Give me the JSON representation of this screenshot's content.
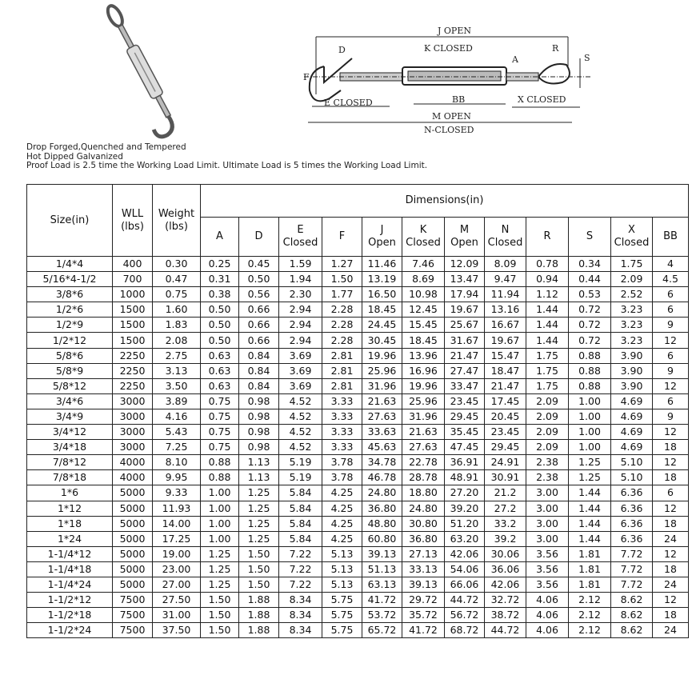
{
  "diagram": {
    "labels": {
      "j_open": "J OPEN",
      "k_closed": "K CLOSED",
      "e_closed": "E CLOSED",
      "bb": "BB",
      "x_closed": "X CLOSED",
      "m_open": "M OPEN",
      "n_closed": "N-CLOSED",
      "d": "D",
      "f": "F",
      "a": "A",
      "r": "R",
      "s": "S"
    }
  },
  "notes": [
    "Drop Forged,Quenched and Tempered",
    "Hot Dipped Galvanized",
    "Proof Load is 2.5 time the Working Load Limit. Ultimate Load is 5 times the Working Load Limit."
  ],
  "table": {
    "headers": {
      "size": "Size(in)",
      "wll": "WLL (lbs)",
      "weight": "Weight (lbs)",
      "dimensions": "Dimensions(in)"
    },
    "dim_columns": [
      {
        "top": "",
        "bottom": "A"
      },
      {
        "top": "",
        "bottom": "D"
      },
      {
        "top": "E",
        "bottom": "Closed"
      },
      {
        "top": "",
        "bottom": "F"
      },
      {
        "top": "J",
        "bottom": "Open"
      },
      {
        "top": "K",
        "bottom": "Closed"
      },
      {
        "top": "M",
        "bottom": "Open"
      },
      {
        "top": "N",
        "bottom": "Closed"
      },
      {
        "top": "",
        "bottom": "R"
      },
      {
        "top": "",
        "bottom": "S"
      },
      {
        "top": "X",
        "bottom": "Closed"
      },
      {
        "top": "",
        "bottom": "BB"
      }
    ],
    "rows": [
      [
        "1/4*4",
        "400",
        "0.30",
        "0.25",
        "0.45",
        "1.59",
        "1.27",
        "11.46",
        "7.46",
        "12.09",
        "8.09",
        "0.78",
        "0.34",
        "1.75",
        "4"
      ],
      [
        "5/16*4-1/2",
        "700",
        "0.47",
        "0.31",
        "0.50",
        "1.94",
        "1.50",
        "13.19",
        "8.69",
        "13.47",
        "9.47",
        "0.94",
        "0.44",
        "2.09",
        "4.5"
      ],
      [
        "3/8*6",
        "1000",
        "0.75",
        "0.38",
        "0.56",
        "2.30",
        "1.77",
        "16.50",
        "10.98",
        "17.94",
        "11.94",
        "1.12",
        "0.53",
        "2.52",
        "6"
      ],
      [
        "1/2*6",
        "1500",
        "1.60",
        "0.50",
        "0.66",
        "2.94",
        "2.28",
        "18.45",
        "12.45",
        "19.67",
        "13.16",
        "1.44",
        "0.72",
        "3.23",
        "6"
      ],
      [
        "1/2*9",
        "1500",
        "1.83",
        "0.50",
        "0.66",
        "2.94",
        "2.28",
        "24.45",
        "15.45",
        "25.67",
        "16.67",
        "1.44",
        "0.72",
        "3.23",
        "9"
      ],
      [
        "1/2*12",
        "1500",
        "2.08",
        "0.50",
        "0.66",
        "2.94",
        "2.28",
        "30.45",
        "18.45",
        "31.67",
        "19.67",
        "1.44",
        "0.72",
        "3.23",
        "12"
      ],
      [
        "5/8*6",
        "2250",
        "2.75",
        "0.63",
        "0.84",
        "3.69",
        "2.81",
        "19.96",
        "13.96",
        "21.47",
        "15.47",
        "1.75",
        "0.88",
        "3.90",
        "6"
      ],
      [
        "5/8*9",
        "2250",
        "3.13",
        "0.63",
        "0.84",
        "3.69",
        "2.81",
        "25.96",
        "16.96",
        "27.47",
        "18.47",
        "1.75",
        "0.88",
        "3.90",
        "9"
      ],
      [
        "5/8*12",
        "2250",
        "3.50",
        "0.63",
        "0.84",
        "3.69",
        "2.81",
        "31.96",
        "19.96",
        "33.47",
        "21.47",
        "1.75",
        "0.88",
        "3.90",
        "12"
      ],
      [
        "3/4*6",
        "3000",
        "3.89",
        "0.75",
        "0.98",
        "4.52",
        "3.33",
        "21.63",
        "25.96",
        "23.45",
        "17.45",
        "2.09",
        "1.00",
        "4.69",
        "6"
      ],
      [
        "3/4*9",
        "3000",
        "4.16",
        "0.75",
        "0.98",
        "4.52",
        "3.33",
        "27.63",
        "31.96",
        "29.45",
        "20.45",
        "2.09",
        "1.00",
        "4.69",
        "9"
      ],
      [
        "3/4*12",
        "3000",
        "5.43",
        "0.75",
        "0.98",
        "4.52",
        "3.33",
        "33.63",
        "21.63",
        "35.45",
        "23.45",
        "2.09",
        "1.00",
        "4.69",
        "12"
      ],
      [
        "3/4*18",
        "3000",
        "7.25",
        "0.75",
        "0.98",
        "4.52",
        "3.33",
        "45.63",
        "27.63",
        "47.45",
        "29.45",
        "2.09",
        "1.00",
        "4.69",
        "18"
      ],
      [
        "7/8*12",
        "4000",
        "8.10",
        "0.88",
        "1.13",
        "5.19",
        "3.78",
        "34.78",
        "22.78",
        "36.91",
        "24.91",
        "2.38",
        "1.25",
        "5.10",
        "12"
      ],
      [
        "7/8*18",
        "4000",
        "9.95",
        "0.88",
        "1.13",
        "5.19",
        "3.78",
        "46.78",
        "28.78",
        "48.91",
        "30.91",
        "2.38",
        "1.25",
        "5.10",
        "18"
      ],
      [
        "1*6",
        "5000",
        "9.33",
        "1.00",
        "1.25",
        "5.84",
        "4.25",
        "24.80",
        "18.80",
        "27.20",
        "21.2",
        "3.00",
        "1.44",
        "6.36",
        "6"
      ],
      [
        "1*12",
        "5000",
        "11.93",
        "1.00",
        "1.25",
        "5.84",
        "4.25",
        "36.80",
        "24.80",
        "39.20",
        "27.2",
        "3.00",
        "1.44",
        "6.36",
        "12"
      ],
      [
        "1*18",
        "5000",
        "14.00",
        "1.00",
        "1.25",
        "5.84",
        "4.25",
        "48.80",
        "30.80",
        "51.20",
        "33.2",
        "3.00",
        "1.44",
        "6.36",
        "18"
      ],
      [
        "1*24",
        "5000",
        "17.25",
        "1.00",
        "1.25",
        "5.84",
        "4.25",
        "60.80",
        "36.80",
        "63.20",
        "39.2",
        "3.00",
        "1.44",
        "6.36",
        "24"
      ],
      [
        "1-1/4*12",
        "5000",
        "19.00",
        "1.25",
        "1.50",
        "7.22",
        "5.13",
        "39.13",
        "27.13",
        "42.06",
        "30.06",
        "3.56",
        "1.81",
        "7.72",
        "12"
      ],
      [
        "1-1/4*18",
        "5000",
        "23.00",
        "1.25",
        "1.50",
        "7.22",
        "5.13",
        "51.13",
        "33.13",
        "54.06",
        "36.06",
        "3.56",
        "1.81",
        "7.72",
        "18"
      ],
      [
        "1-1/4*24",
        "5000",
        "27.00",
        "1.25",
        "1.50",
        "7.22",
        "5.13",
        "63.13",
        "39.13",
        "66.06",
        "42.06",
        "3.56",
        "1.81",
        "7.72",
        "24"
      ],
      [
        "1-1/2*12",
        "7500",
        "27.50",
        "1.50",
        "1.88",
        "8.34",
        "5.75",
        "41.72",
        "29.72",
        "44.72",
        "32.72",
        "4.06",
        "2.12",
        "8.62",
        "12"
      ],
      [
        "1-1/2*18",
        "7500",
        "31.00",
        "1.50",
        "1.88",
        "8.34",
        "5.75",
        "53.72",
        "35.72",
        "56.72",
        "38.72",
        "4.06",
        "2.12",
        "8.62",
        "18"
      ],
      [
        "1-1/2*24",
        "7500",
        "37.50",
        "1.50",
        "1.88",
        "8.34",
        "5.75",
        "65.72",
        "41.72",
        "68.72",
        "44.72",
        "4.06",
        "2.12",
        "8.62",
        "24"
      ]
    ]
  }
}
